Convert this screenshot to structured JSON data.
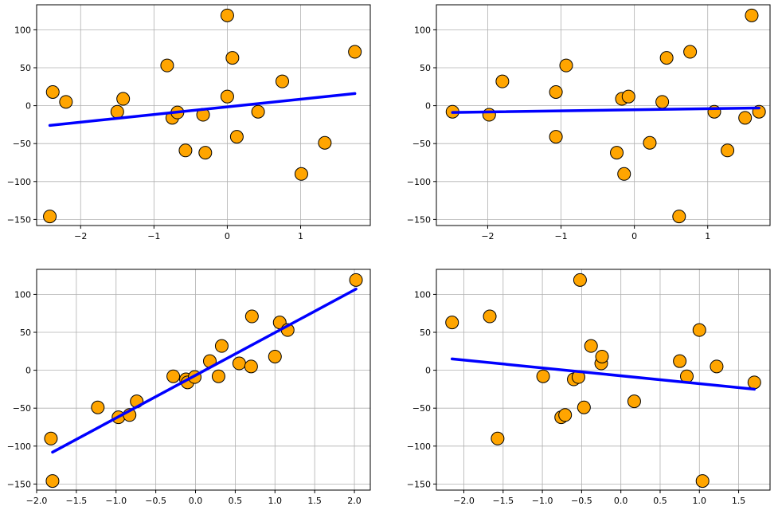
{
  "colors": {
    "point_fill": "#FFA500",
    "point_edge": "#000000",
    "line": "#0000FF",
    "grid": "#b0b0b0",
    "background": "#ffffff"
  },
  "chart_data": [
    {
      "type": "scatter",
      "title": "",
      "xlabel": "",
      "ylabel": "",
      "grid": true,
      "xlim": [
        -2.6,
        1.95
      ],
      "ylim": [
        -158,
        133
      ],
      "xticks": [
        -2,
        -1,
        0,
        1
      ],
      "xtick_labels": [
        "−2",
        "−1",
        "0",
        "1"
      ],
      "yticks": [
        -150,
        -100,
        -50,
        0,
        50,
        100
      ],
      "ytick_labels": [
        "−150",
        "−100",
        "−50",
        "0",
        "50",
        "100"
      ],
      "points": {
        "x": [
          -2.38,
          -2.2,
          -2.42,
          -1.5,
          -1.42,
          -0.82,
          -0.75,
          -0.68,
          -0.57,
          -0.33,
          -0.3,
          0.0,
          0.0,
          0.07,
          0.13,
          0.42,
          0.75,
          1.01,
          1.33,
          1.74
        ],
        "y": [
          18,
          5,
          -146,
          -8,
          9,
          53,
          -16,
          -9,
          -59,
          -12,
          -62,
          119,
          12,
          63,
          -41,
          -8,
          32,
          -90,
          -49,
          71
        ]
      },
      "fit_line": {
        "x": [
          -2.42,
          1.74
        ],
        "y": [
          -26,
          16
        ]
      }
    },
    {
      "type": "scatter",
      "title": "",
      "xlabel": "",
      "ylabel": "",
      "grid": true,
      "xlim": [
        -2.7,
        1.85
      ],
      "ylim": [
        -158,
        133
      ],
      "xticks": [
        -2,
        -1,
        0,
        1
      ],
      "xtick_labels": [
        "−2",
        "−1",
        "0",
        "1"
      ],
      "yticks": [
        -150,
        -100,
        -50,
        0,
        50,
        100
      ],
      "ytick_labels": [
        "−150",
        "−100",
        "−50",
        "0",
        "50",
        "100"
      ],
      "points": {
        "x": [
          -2.48,
          -1.98,
          -1.8,
          -1.07,
          -1.07,
          -0.93,
          -0.24,
          -0.17,
          -0.14,
          -0.08,
          0.21,
          0.38,
          0.44,
          0.61,
          0.76,
          1.09,
          1.27,
          1.51,
          1.6,
          1.7
        ],
        "y": [
          -8,
          -12,
          32,
          18,
          -41,
          53,
          -62,
          9,
          -90,
          12,
          -49,
          5,
          63,
          -146,
          71,
          -8,
          -59,
          -16,
          119,
          -8
        ]
      },
      "fit_line": {
        "x": [
          -2.48,
          1.7
        ],
        "y": [
          -9,
          -3
        ]
      }
    },
    {
      "type": "scatter",
      "title": "",
      "xlabel": "",
      "ylabel": "",
      "grid": true,
      "xlim": [
        -2.0,
        2.2
      ],
      "ylim": [
        -158,
        133
      ],
      "xticks": [
        -2.0,
        -1.5,
        -1.0,
        -0.5,
        0.0,
        0.5,
        1.0,
        1.5,
        2.0
      ],
      "xtick_labels": [
        "−2.0",
        "−1.5",
        "−1.0",
        "−0.5",
        "0.0",
        "0.5",
        "1.0",
        "1.5",
        "2.0"
      ],
      "yticks": [
        -150,
        -100,
        -50,
        0,
        50,
        100
      ],
      "ytick_labels": [
        "−150",
        "−100",
        "−50",
        "0",
        "50",
        "100"
      ],
      "points": {
        "x": [
          -1.82,
          -1.8,
          -1.23,
          -0.97,
          -0.83,
          -0.74,
          -0.28,
          -0.12,
          -0.1,
          -0.01,
          0.18,
          0.29,
          0.33,
          0.55,
          0.7,
          0.71,
          1.0,
          1.06,
          1.16,
          2.02
        ],
        "y": [
          -90,
          -146,
          -49,
          -62,
          -59,
          -41,
          -8,
          -12,
          -16,
          -9,
          12,
          -8,
          32,
          9,
          5,
          71,
          18,
          63,
          53,
          119
        ]
      },
      "fit_line": {
        "x": [
          -1.8,
          2.02
        ],
        "y": [
          -108,
          107
        ]
      }
    },
    {
      "type": "scatter",
      "title": "",
      "xlabel": "",
      "ylabel": "",
      "grid": true,
      "xlim": [
        -2.35,
        1.9
      ],
      "ylim": [
        -158,
        133
      ],
      "xticks": [
        -2.0,
        -1.5,
        -1.0,
        -0.5,
        0.0,
        0.5,
        1.0,
        1.5
      ],
      "xtick_labels": [
        "−2.0",
        "−1.5",
        "−1.0",
        "−0.5",
        "0.0",
        "0.5",
        "1.0",
        "1.5"
      ],
      "yticks": [
        -150,
        -100,
        -50,
        0,
        50,
        100
      ],
      "ytick_labels": [
        "−150",
        "−100",
        "−50",
        "0",
        "50",
        "100"
      ],
      "points": {
        "x": [
          -2.15,
          -1.67,
          -1.57,
          -0.99,
          -0.76,
          -0.71,
          -0.6,
          -0.54,
          -0.52,
          -0.47,
          -0.38,
          -0.25,
          -0.24,
          0.17,
          0.75,
          0.84,
          1.0,
          1.04,
          1.22,
          1.7
        ],
        "y": [
          63,
          71,
          -90,
          -8,
          -62,
          -59,
          -12,
          -9,
          119,
          -49,
          32,
          9,
          18,
          -41,
          12,
          -8,
          53,
          -146,
          5,
          -16
        ]
      },
      "fit_line": {
        "x": [
          -2.15,
          1.7
        ],
        "y": [
          15,
          -25
        ]
      }
    }
  ]
}
